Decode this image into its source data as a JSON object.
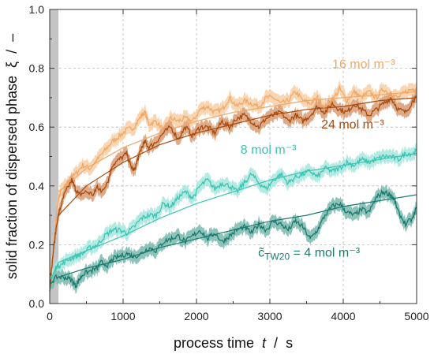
{
  "chart_data": {
    "type": "line",
    "xlabel": {
      "text": "process time",
      "symbol": "t",
      "sep": " / ",
      "unit": "s"
    },
    "ylabel": {
      "text": "solid fraction of dispersed phase",
      "symbol": "ξ",
      "sep": " / ",
      "unit": "–"
    },
    "xlim": [
      0,
      5000
    ],
    "ylim": [
      0.0,
      1.0
    ],
    "xticks": [
      0,
      1000,
      2000,
      3000,
      4000,
      5000
    ],
    "yticks": [
      0.0,
      0.2,
      0.4,
      0.6,
      0.8,
      1.0
    ],
    "xtick_labels": [
      "0",
      "1000",
      "2000",
      "3000",
      "4000",
      "5000"
    ],
    "ytick_labels": [
      "0.0",
      "0.2",
      "0.4",
      "0.6",
      "0.8",
      "1.0"
    ],
    "grid": true,
    "shaded_region_x": [
      0,
      120
    ],
    "series": [
      {
        "label": "16 mol m⁻³",
        "color": "#f0a868",
        "band": "#f7cfa6",
        "points": [
          [
            0,
            0.08
          ],
          [
            50,
            0.18
          ],
          [
            100,
            0.33
          ],
          [
            150,
            0.38
          ],
          [
            250,
            0.41
          ],
          [
            350,
            0.44
          ],
          [
            450,
            0.47
          ],
          [
            550,
            0.46
          ],
          [
            650,
            0.49
          ],
          [
            750,
            0.52
          ],
          [
            850,
            0.55
          ],
          [
            950,
            0.57
          ],
          [
            1050,
            0.59
          ],
          [
            1150,
            0.6
          ],
          [
            1250,
            0.64
          ],
          [
            1300,
            0.65
          ],
          [
            1350,
            0.61
          ],
          [
            1450,
            0.62
          ],
          [
            1550,
            0.59
          ],
          [
            1650,
            0.63
          ],
          [
            1750,
            0.62
          ],
          [
            1850,
            0.63
          ],
          [
            1950,
            0.62
          ],
          [
            2050,
            0.66
          ],
          [
            2150,
            0.67
          ],
          [
            2250,
            0.65
          ],
          [
            2350,
            0.66
          ],
          [
            2450,
            0.7
          ],
          [
            2550,
            0.67
          ],
          [
            2650,
            0.69
          ],
          [
            2750,
            0.68
          ],
          [
            2850,
            0.67
          ],
          [
            2950,
            0.7
          ],
          [
            3050,
            0.7
          ],
          [
            3150,
            0.68
          ],
          [
            3250,
            0.69
          ],
          [
            3350,
            0.72
          ],
          [
            3450,
            0.69
          ],
          [
            3550,
            0.68
          ],
          [
            3650,
            0.7
          ],
          [
            3750,
            0.67
          ],
          [
            3850,
            0.69
          ],
          [
            3950,
            0.73
          ],
          [
            4050,
            0.69
          ],
          [
            4150,
            0.72
          ],
          [
            4250,
            0.7
          ],
          [
            4350,
            0.72
          ],
          [
            4450,
            0.7
          ],
          [
            4550,
            0.73
          ],
          [
            4650,
            0.71
          ],
          [
            4750,
            0.7
          ],
          [
            4850,
            0.72
          ],
          [
            4950,
            0.73
          ],
          [
            5000,
            0.73
          ]
        ],
        "fit": [
          [
            120,
            0.38
          ],
          [
            500,
            0.46
          ],
          [
            1000,
            0.53
          ],
          [
            1500,
            0.58
          ],
          [
            2000,
            0.62
          ],
          [
            2500,
            0.65
          ],
          [
            3000,
            0.67
          ],
          [
            3500,
            0.69
          ],
          [
            4000,
            0.7
          ],
          [
            4500,
            0.71
          ],
          [
            5000,
            0.72
          ]
        ]
      },
      {
        "label": "24 mol m⁻³",
        "color": "#a64b10",
        "band": "#d99b72",
        "points": [
          [
            0,
            0.05
          ],
          [
            50,
            0.18
          ],
          [
            100,
            0.28
          ],
          [
            150,
            0.33
          ],
          [
            200,
            0.37
          ],
          [
            300,
            0.42
          ],
          [
            350,
            0.39
          ],
          [
            400,
            0.37
          ],
          [
            500,
            0.38
          ],
          [
            600,
            0.37
          ],
          [
            650,
            0.4
          ],
          [
            700,
            0.38
          ],
          [
            800,
            0.42
          ],
          [
            850,
            0.47
          ],
          [
            950,
            0.49
          ],
          [
            1050,
            0.51
          ],
          [
            1100,
            0.47
          ],
          [
            1150,
            0.45
          ],
          [
            1200,
            0.49
          ],
          [
            1250,
            0.53
          ],
          [
            1300,
            0.55
          ],
          [
            1350,
            0.53
          ],
          [
            1450,
            0.55
          ],
          [
            1550,
            0.58
          ],
          [
            1650,
            0.6
          ],
          [
            1750,
            0.56
          ],
          [
            1850,
            0.6
          ],
          [
            1950,
            0.57
          ],
          [
            2050,
            0.6
          ],
          [
            2150,
            0.6
          ],
          [
            2250,
            0.58
          ],
          [
            2350,
            0.62
          ],
          [
            2450,
            0.6
          ],
          [
            2550,
            0.63
          ],
          [
            2650,
            0.64
          ],
          [
            2750,
            0.62
          ],
          [
            2850,
            0.6
          ],
          [
            2950,
            0.63
          ],
          [
            3050,
            0.64
          ],
          [
            3150,
            0.65
          ],
          [
            3250,
            0.62
          ],
          [
            3350,
            0.64
          ],
          [
            3450,
            0.62
          ],
          [
            3550,
            0.64
          ],
          [
            3650,
            0.67
          ],
          [
            3750,
            0.65
          ],
          [
            3850,
            0.68
          ],
          [
            3950,
            0.66
          ],
          [
            4050,
            0.65
          ],
          [
            4150,
            0.68
          ],
          [
            4250,
            0.66
          ],
          [
            4350,
            0.64
          ],
          [
            4450,
            0.66
          ],
          [
            4550,
            0.68
          ],
          [
            4650,
            0.7
          ],
          [
            4750,
            0.66
          ],
          [
            4850,
            0.65
          ],
          [
            4950,
            0.69
          ],
          [
            5000,
            0.7
          ]
        ],
        "fit": [
          [
            120,
            0.3
          ],
          [
            500,
            0.4
          ],
          [
            1000,
            0.48
          ],
          [
            1500,
            0.54
          ],
          [
            2000,
            0.58
          ],
          [
            2500,
            0.61
          ],
          [
            3000,
            0.64
          ],
          [
            3500,
            0.66
          ],
          [
            4000,
            0.67
          ],
          [
            4500,
            0.69
          ],
          [
            5000,
            0.7
          ]
        ]
      },
      {
        "label": "8 mol m⁻³",
        "color": "#3cc4b4",
        "band": "#a8e6de",
        "points": [
          [
            0,
            0.08
          ],
          [
            50,
            0.1
          ],
          [
            100,
            0.13
          ],
          [
            150,
            0.13
          ],
          [
            250,
            0.15
          ],
          [
            350,
            0.16
          ],
          [
            450,
            0.17
          ],
          [
            550,
            0.19
          ],
          [
            650,
            0.2
          ],
          [
            750,
            0.23
          ],
          [
            850,
            0.25
          ],
          [
            950,
            0.25
          ],
          [
            1050,
            0.24
          ],
          [
            1150,
            0.26
          ],
          [
            1250,
            0.29
          ],
          [
            1350,
            0.3
          ],
          [
            1450,
            0.3
          ],
          [
            1550,
            0.34
          ],
          [
            1650,
            0.33
          ],
          [
            1750,
            0.36
          ],
          [
            1850,
            0.38
          ],
          [
            1950,
            0.36
          ],
          [
            2050,
            0.4
          ],
          [
            2150,
            0.42
          ],
          [
            2250,
            0.39
          ],
          [
            2350,
            0.41
          ],
          [
            2450,
            0.4
          ],
          [
            2550,
            0.38
          ],
          [
            2650,
            0.41
          ],
          [
            2750,
            0.44
          ],
          [
            2850,
            0.41
          ],
          [
            2950,
            0.39
          ],
          [
            3050,
            0.42
          ],
          [
            3150,
            0.44
          ],
          [
            3250,
            0.41
          ],
          [
            3350,
            0.43
          ],
          [
            3450,
            0.44
          ],
          [
            3550,
            0.45
          ],
          [
            3650,
            0.43
          ],
          [
            3750,
            0.46
          ],
          [
            3850,
            0.45
          ],
          [
            3950,
            0.46
          ],
          [
            4050,
            0.48
          ],
          [
            4150,
            0.47
          ],
          [
            4250,
            0.49
          ],
          [
            4350,
            0.48
          ],
          [
            4450,
            0.49
          ],
          [
            4550,
            0.5
          ],
          [
            4650,
            0.5
          ],
          [
            4750,
            0.49
          ],
          [
            4850,
            0.51
          ],
          [
            4950,
            0.51
          ],
          [
            5000,
            0.52
          ]
        ],
        "fit": [
          [
            120,
            0.14
          ],
          [
            500,
            0.18
          ],
          [
            1000,
            0.23
          ],
          [
            1500,
            0.29
          ],
          [
            2000,
            0.34
          ],
          [
            2500,
            0.38
          ],
          [
            3000,
            0.42
          ],
          [
            3500,
            0.45
          ],
          [
            4000,
            0.47
          ],
          [
            4500,
            0.49
          ],
          [
            5000,
            0.51
          ]
        ]
      },
      {
        "label": "c̃",
        "label_sub": "TW20",
        "label_rest": " = 4 mol m⁻³",
        "color": "#1a7a6e",
        "band": "#7ab8ae",
        "points": [
          [
            0,
            0.07
          ],
          [
            100,
            0.09
          ],
          [
            200,
            0.09
          ],
          [
            300,
            0.08
          ],
          [
            350,
            0.06
          ],
          [
            400,
            0.08
          ],
          [
            450,
            0.1
          ],
          [
            550,
            0.11
          ],
          [
            650,
            0.12
          ],
          [
            700,
            0.14
          ],
          [
            800,
            0.13
          ],
          [
            850,
            0.15
          ],
          [
            950,
            0.16
          ],
          [
            1050,
            0.17
          ],
          [
            1150,
            0.16
          ],
          [
            1250,
            0.17
          ],
          [
            1350,
            0.19
          ],
          [
            1450,
            0.18
          ],
          [
            1550,
            0.21
          ],
          [
            1650,
            0.22
          ],
          [
            1750,
            0.23
          ],
          [
            1850,
            0.21
          ],
          [
            1950,
            0.23
          ],
          [
            2050,
            0.25
          ],
          [
            2150,
            0.22
          ],
          [
            2250,
            0.24
          ],
          [
            2350,
            0.21
          ],
          [
            2450,
            0.23
          ],
          [
            2550,
            0.25
          ],
          [
            2650,
            0.26
          ],
          [
            2750,
            0.24
          ],
          [
            2850,
            0.27
          ],
          [
            2950,
            0.25
          ],
          [
            3050,
            0.28
          ],
          [
            3150,
            0.27
          ],
          [
            3250,
            0.25
          ],
          [
            3350,
            0.28
          ],
          [
            3450,
            0.26
          ],
          [
            3550,
            0.22
          ],
          [
            3650,
            0.25
          ],
          [
            3750,
            0.3
          ],
          [
            3850,
            0.33
          ],
          [
            3950,
            0.34
          ],
          [
            4050,
            0.31
          ],
          [
            4150,
            0.3
          ],
          [
            4250,
            0.32
          ],
          [
            4350,
            0.31
          ],
          [
            4450,
            0.36
          ],
          [
            4550,
            0.38
          ],
          [
            4650,
            0.37
          ],
          [
            4700,
            0.35
          ],
          [
            4750,
            0.31
          ],
          [
            4850,
            0.27
          ],
          [
            4950,
            0.29
          ],
          [
            5000,
            0.33
          ]
        ],
        "fit": [
          [
            120,
            0.09
          ],
          [
            500,
            0.12
          ],
          [
            1000,
            0.15
          ],
          [
            1500,
            0.19
          ],
          [
            2000,
            0.22
          ],
          [
            2500,
            0.25
          ],
          [
            3000,
            0.28
          ],
          [
            3500,
            0.3
          ],
          [
            4000,
            0.33
          ],
          [
            4500,
            0.35
          ],
          [
            5000,
            0.37
          ]
        ]
      }
    ]
  }
}
